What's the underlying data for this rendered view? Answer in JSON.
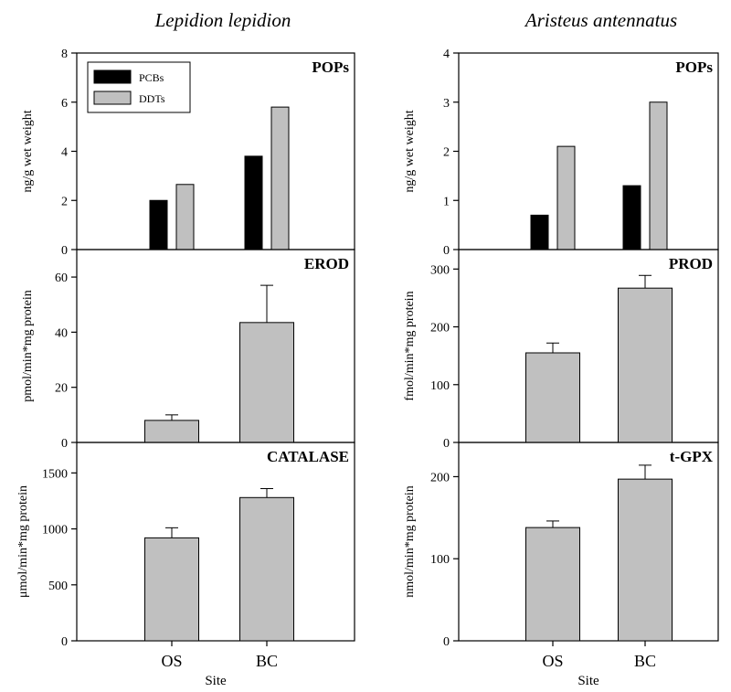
{
  "colors": {
    "pcb": "#000000",
    "ddt": "#c0c0c0",
    "bar": "#c0c0c0",
    "axis": "#000000"
  },
  "chart_data": [
    {
      "type": "bar",
      "column_title": "Lepidion lepidion",
      "title": "POPs",
      "ylabel": "ng/g wet weight",
      "ylim": [
        0,
        8
      ],
      "yticks": [
        0,
        2,
        4,
        6,
        8
      ],
      "categories": [
        "OS",
        "BC"
      ],
      "series": [
        {
          "name": "PCBs",
          "values": [
            2.0,
            3.8
          ]
        },
        {
          "name": "DDTs",
          "values": [
            2.65,
            5.8
          ]
        }
      ],
      "legend": "top-left"
    },
    {
      "type": "bar",
      "title": "EROD",
      "ylabel": "pmol/min*mg protein",
      "ylim": [
        0,
        65
      ],
      "yticks": [
        0,
        20,
        40,
        60
      ],
      "categories": [
        "OS",
        "BC"
      ],
      "values": [
        8,
        43.5
      ],
      "errors": [
        2,
        13.5
      ]
    },
    {
      "type": "bar",
      "title": "CATALASE",
      "ylabel": "μmol/min*mg protein",
      "ylim": [
        0,
        1650
      ],
      "yticks": [
        0,
        500,
        1000,
        1500
      ],
      "categories": [
        "OS",
        "BC"
      ],
      "values": [
        920,
        1280
      ],
      "errors": [
        90,
        80
      ],
      "xlabel": "Site"
    },
    {
      "type": "bar",
      "column_title": "Aristeus antennatus",
      "title": "POPs",
      "ylabel": "ng/g wet weight",
      "ylim": [
        0,
        4
      ],
      "yticks": [
        0,
        1,
        2,
        3,
        4
      ],
      "categories": [
        "OS",
        "BC"
      ],
      "series": [
        {
          "name": "PCBs",
          "values": [
            0.7,
            1.3
          ]
        },
        {
          "name": "DDTs",
          "values": [
            2.1,
            3.0
          ]
        }
      ]
    },
    {
      "type": "bar",
      "title": "PROD",
      "ylabel": "fmol/min*mg protein",
      "ylim": [
        0,
        310
      ],
      "yticks": [
        0,
        100,
        200,
        300
      ],
      "categories": [
        "OS",
        "BC"
      ],
      "values": [
        155,
        267
      ],
      "errors": [
        17,
        22
      ]
    },
    {
      "type": "bar",
      "title": "t-GPX",
      "ylabel": "nmol/min*mg protein",
      "ylim": [
        0,
        225
      ],
      "yticks": [
        0,
        100,
        200
      ],
      "categories": [
        "OS",
        "BC"
      ],
      "values": [
        138,
        197
      ],
      "errors": [
        8,
        17
      ],
      "xlabel": "Site"
    }
  ]
}
